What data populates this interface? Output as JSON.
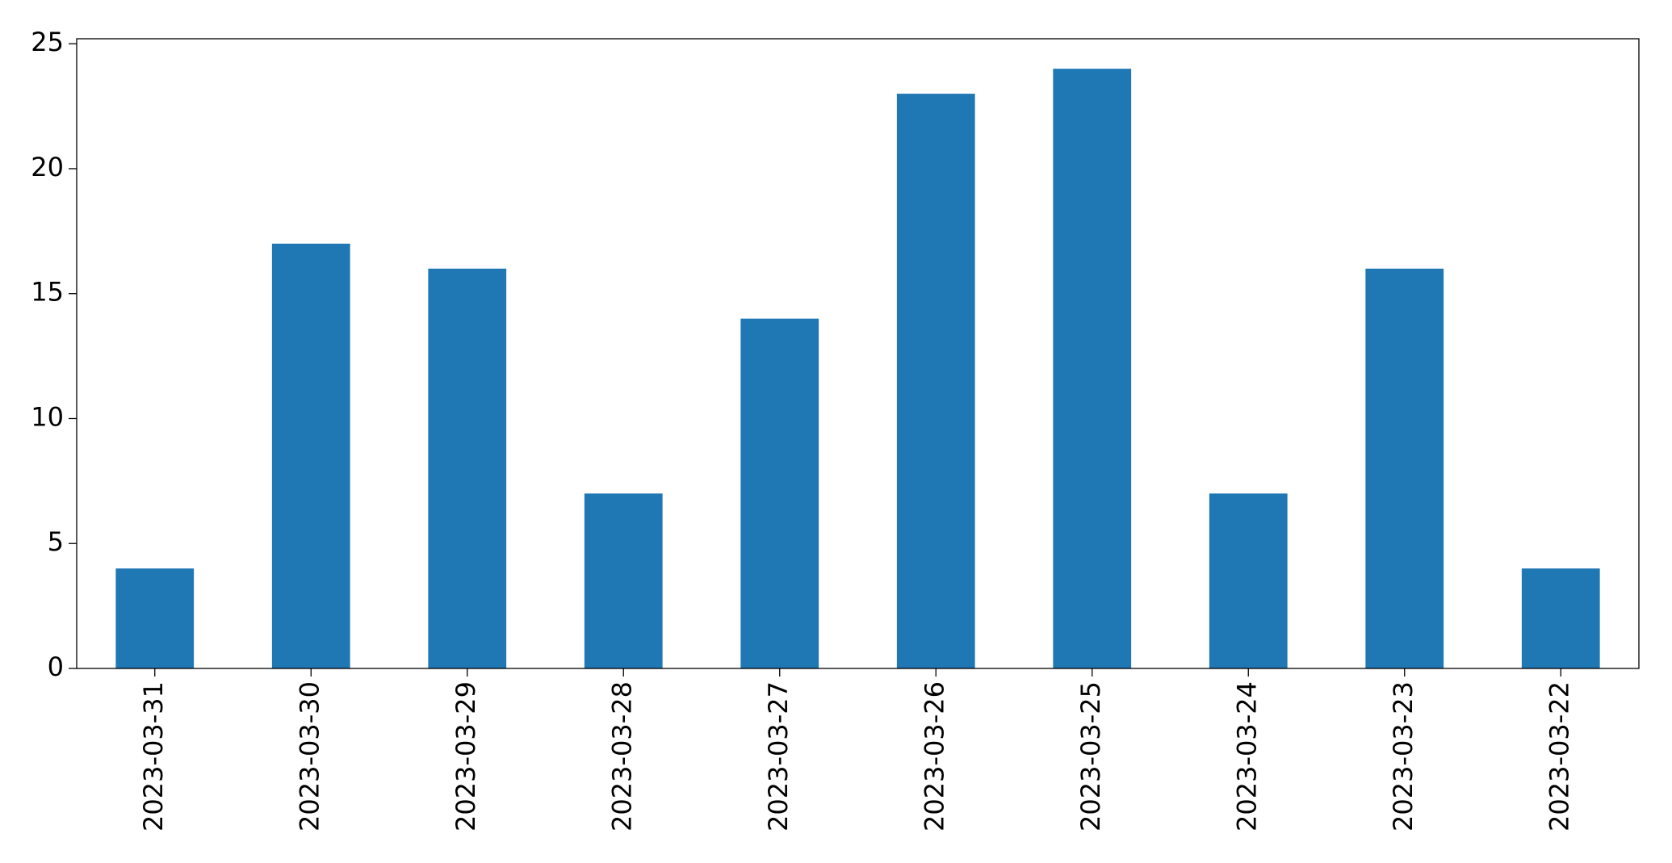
{
  "chart_data": {
    "type": "bar",
    "categories": [
      "2023-03-31",
      "2023-03-30",
      "2023-03-29",
      "2023-03-28",
      "2023-03-27",
      "2023-03-26",
      "2023-03-25",
      "2023-03-24",
      "2023-03-23",
      "2023-03-22"
    ],
    "values": [
      4,
      17,
      16,
      7,
      14,
      23,
      24,
      7,
      16,
      4
    ],
    "color": "#1f77b4",
    "ylim": [
      0,
      25.2
    ],
    "yticks": [
      0,
      5,
      10,
      15,
      20,
      25
    ],
    "grid": false
  }
}
